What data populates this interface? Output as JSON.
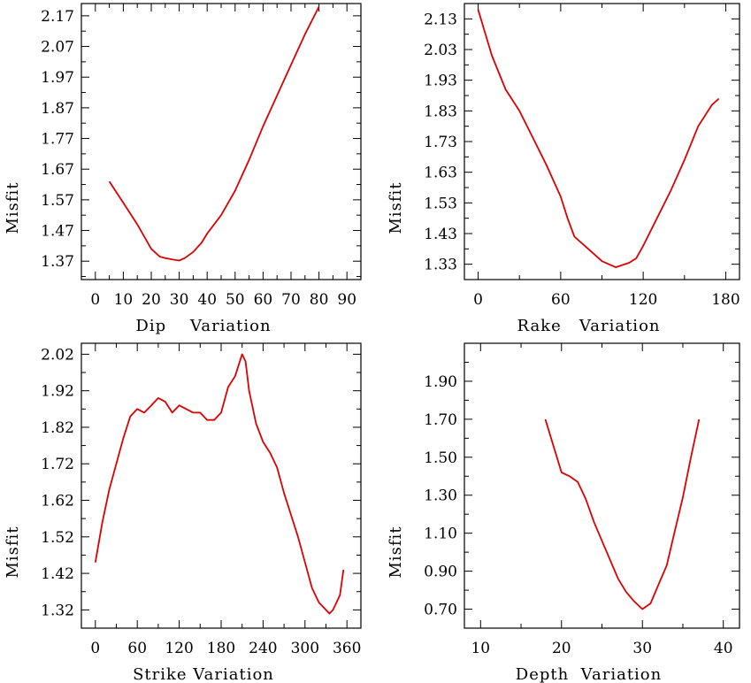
{
  "colors": {
    "line": "#dd0000",
    "axis": "#000000",
    "background": "#ffffff"
  },
  "chart_data": [
    {
      "id": "dip",
      "type": "line",
      "xlabel": "Dip    Variation",
      "ylabel": "Misfit",
      "xlim": [
        -5,
        95
      ],
      "ylim": [
        1.31,
        2.21
      ],
      "xticks": [
        0,
        10,
        20,
        30,
        40,
        50,
        60,
        70,
        80,
        90
      ],
      "yticks": [
        1.37,
        1.47,
        1.57,
        1.67,
        1.77,
        1.87,
        1.97,
        2.07,
        2.17
      ],
      "x": [
        5,
        10,
        15,
        20,
        23,
        25,
        28,
        30,
        32,
        35,
        38,
        40,
        45,
        50,
        55,
        60,
        65,
        70,
        75,
        80
      ],
      "y": [
        1.63,
        1.56,
        1.49,
        1.41,
        1.385,
        1.38,
        1.375,
        1.372,
        1.38,
        1.4,
        1.43,
        1.46,
        1.52,
        1.6,
        1.7,
        1.81,
        1.91,
        2.01,
        2.11,
        2.2
      ]
    },
    {
      "id": "rake",
      "type": "line",
      "xlabel": "Rake   Variation",
      "ylabel": "Misfit",
      "xlim": [
        -10,
        190
      ],
      "ylim": [
        1.28,
        2.18
      ],
      "xticks": [
        0,
        60,
        120,
        180
      ],
      "yticks": [
        1.33,
        1.43,
        1.53,
        1.63,
        1.73,
        1.83,
        1.93,
        2.03,
        2.13
      ],
      "x": [
        0,
        10,
        20,
        30,
        40,
        50,
        60,
        65,
        70,
        80,
        90,
        100,
        110,
        115,
        120,
        130,
        140,
        150,
        160,
        170,
        175
      ],
      "y": [
        2.16,
        2.01,
        1.9,
        1.83,
        1.74,
        1.65,
        1.55,
        1.48,
        1.42,
        1.38,
        1.34,
        1.32,
        1.335,
        1.35,
        1.39,
        1.48,
        1.57,
        1.67,
        1.78,
        1.85,
        1.87
      ]
    },
    {
      "id": "strike",
      "type": "line",
      "xlabel": "Strike Variation",
      "ylabel": "Misfit",
      "xlim": [
        -20,
        380
      ],
      "ylim": [
        1.27,
        2.05
      ],
      "xticks": [
        0,
        60,
        120,
        180,
        240,
        300,
        360
      ],
      "yticks": [
        1.32,
        1.42,
        1.52,
        1.62,
        1.72,
        1.82,
        1.92,
        2.02
      ],
      "x": [
        0,
        10,
        20,
        30,
        40,
        50,
        60,
        70,
        80,
        90,
        100,
        110,
        120,
        130,
        140,
        150,
        160,
        170,
        180,
        190,
        200,
        210,
        215,
        220,
        230,
        240,
        250,
        260,
        270,
        280,
        290,
        300,
        310,
        320,
        330,
        335,
        340,
        350,
        355
      ],
      "y": [
        1.45,
        1.56,
        1.65,
        1.72,
        1.79,
        1.85,
        1.87,
        1.86,
        1.88,
        1.9,
        1.89,
        1.86,
        1.88,
        1.87,
        1.86,
        1.86,
        1.84,
        1.84,
        1.86,
        1.93,
        1.96,
        2.02,
        2.0,
        1.92,
        1.83,
        1.78,
        1.75,
        1.71,
        1.64,
        1.58,
        1.52,
        1.45,
        1.38,
        1.34,
        1.32,
        1.31,
        1.32,
        1.36,
        1.43
      ]
    },
    {
      "id": "depth",
      "type": "line",
      "xlabel": "Depth  Variation",
      "ylabel": "Misfit",
      "xlim": [
        8,
        42
      ],
      "ylim": [
        0.6,
        2.1
      ],
      "xticks": [
        10,
        20,
        30,
        40
      ],
      "yticks": [
        0.7,
        0.9,
        1.1,
        1.3,
        1.5,
        1.7,
        1.9
      ],
      "ytick_labels": [
        "0.70",
        "0.90",
        "1.10",
        "1.30",
        "1.50",
        "1.70",
        "1.90"
      ],
      "x": [
        18,
        20,
        21,
        22,
        23,
        24,
        25,
        26,
        27,
        28,
        29,
        30,
        31,
        32,
        33,
        34,
        35,
        36,
        37
      ],
      "y": [
        1.7,
        1.42,
        1.4,
        1.37,
        1.28,
        1.16,
        1.06,
        0.96,
        0.86,
        0.79,
        0.74,
        0.7,
        0.73,
        0.83,
        0.93,
        1.11,
        1.29,
        1.5,
        1.7
      ]
    }
  ]
}
